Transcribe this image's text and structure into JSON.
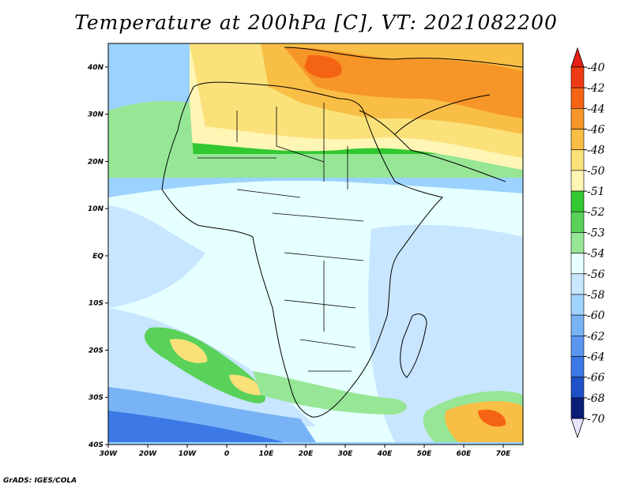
{
  "title": "Temperature at 200hPa [C], VT: 2021082200",
  "footer": "GrADS: IGES/COLA",
  "map": {
    "region": "Africa",
    "lon_range": [
      -30,
      75
    ],
    "lat_range": [
      -40,
      45
    ],
    "x_ticks": [
      "30W",
      "20W",
      "10W",
      "0",
      "10E",
      "20E",
      "30E",
      "40E",
      "50E",
      "60E",
      "70E"
    ],
    "y_ticks": [
      "40S",
      "30S",
      "20S",
      "10S",
      "EQ",
      "10N",
      "20N",
      "30N",
      "40N"
    ]
  },
  "colorbar": {
    "labels": [
      "-40",
      "-42",
      "-44",
      "-46",
      "-48",
      "-50",
      "-51",
      "-52",
      "-53",
      "-54",
      "-56",
      "-58",
      "-60",
      "-62",
      "-64",
      "-66",
      "-68",
      "-70"
    ],
    "top_color": "#e61e14",
    "bottom_color": "#e6e6ff",
    "colors": [
      "#f03c14",
      "#f56414",
      "#f79628",
      "#f9be46",
      "#fbe17a",
      "#fff5b4",
      "#32c832",
      "#5ad25a",
      "#96e696",
      "#e6ffff",
      "#c8e6ff",
      "#a0d2ff",
      "#78b4f5",
      "#5a96f0",
      "#3c78e6",
      "#1e50c8",
      "#0a1e78"
    ]
  },
  "fields": {
    "land_color": "#f0ffff",
    "ocean_color": "#9bd2ff"
  }
}
